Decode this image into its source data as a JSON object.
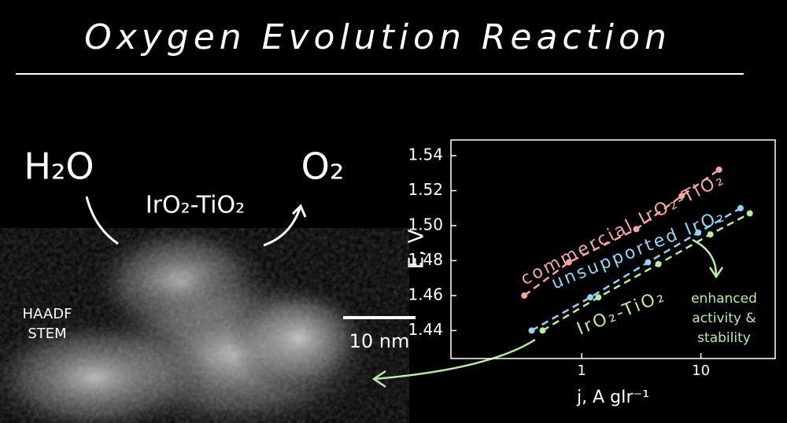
{
  "title": "Oxygen Evolution Reaction",
  "reactant": "H₂O",
  "product": "O₂",
  "catalyst": "IrO₂-TiO₂",
  "image_label": [
    "HAADF",
    "STEM"
  ],
  "scale_bar": "10 nm",
  "chart_data": {
    "type": "scatter",
    "x_label": "j, A gIr⁻¹",
    "y_label": "E, V",
    "xlim": [
      0.08,
      42
    ],
    "ylim": [
      1.424,
      1.549
    ],
    "x_log": true,
    "xticks": [
      1,
      10
    ],
    "yticks": [
      1.44,
      1.46,
      1.48,
      {
        "value": 1.5,
        "label": "1.50"
      },
      1.52,
      1.54
    ],
    "series": [
      {
        "name": "commercial IrO₂-TiO₂",
        "color": "#f4a6a2",
        "x": [
          0.33,
          0.78,
          2.87,
          6.9,
          14.2
        ],
        "values": [
          1.46,
          1.479,
          1.498,
          1.517,
          1.532
        ]
      },
      {
        "name": "unsupported IrO₂",
        "color": "#92d4f5",
        "x": [
          0.38,
          1.18,
          3.6,
          9.5,
          21.5
        ],
        "values": [
          1.44,
          1.459,
          1.479,
          1.496,
          1.51
        ]
      },
      {
        "name": "IrO₂-TiO₂",
        "color": "#b8eca2",
        "x": [
          0.47,
          1.38,
          4.4,
          12,
          25.7
        ],
        "values": [
          1.44,
          1.459,
          1.478,
          1.495,
          1.507
        ]
      }
    ],
    "annotation": [
      "enhanced",
      "activity &",
      "stability"
    ]
  }
}
